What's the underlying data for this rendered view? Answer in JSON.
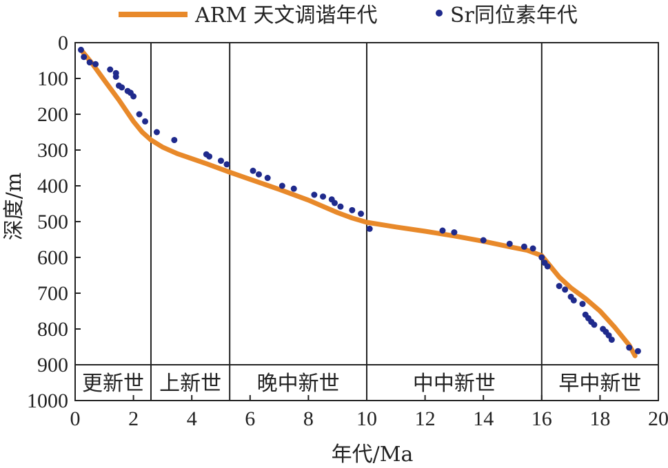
{
  "chart_data": {
    "type": "line",
    "title": "",
    "xlabel": "年代/Ma",
    "ylabel": "深度/m",
    "xlim": [
      0,
      20
    ],
    "ylim": [
      0,
      1000
    ],
    "y_inverted": true,
    "xticks": [
      0,
      2,
      4,
      6,
      8,
      10,
      12,
      14,
      16,
      18,
      20
    ],
    "yticks": [
      0,
      100,
      200,
      300,
      400,
      500,
      600,
      700,
      800,
      900,
      1000
    ],
    "grid": false,
    "legend_position": "top",
    "colors": {
      "arm": "#e8892a",
      "sr": "#1f2a8c",
      "axis": "#222222"
    },
    "series": [
      {
        "name": "ARM 天文调谐年代",
        "kind": "line",
        "x": [
          0.2,
          0.6,
          1.0,
          1.5,
          2.0,
          2.3,
          2.6,
          3.0,
          3.5,
          4.5,
          5.3,
          6.0,
          7.0,
          8.0,
          9.0,
          9.5,
          10.0,
          11.0,
          12.0,
          13.0,
          14.0,
          15.0,
          15.5,
          16.0,
          16.3,
          16.6,
          17.0,
          17.5,
          18.0,
          18.5,
          19.0,
          19.2
        ],
        "y": [
          20,
          60,
          105,
          160,
          220,
          250,
          272,
          292,
          310,
          338,
          362,
          382,
          410,
          440,
          475,
          490,
          502,
          515,
          527,
          540,
          555,
          572,
          580,
          595,
          625,
          655,
          685,
          715,
          750,
          795,
          845,
          875
        ]
      },
      {
        "name": "Sr同位素年代",
        "kind": "scatter",
        "x": [
          0.2,
          0.3,
          0.5,
          0.7,
          1.2,
          1.4,
          1.4,
          1.5,
          1.6,
          1.8,
          1.9,
          2.0,
          2.2,
          2.4,
          2.8,
          3.4,
          4.5,
          4.6,
          5.0,
          5.2,
          6.1,
          6.3,
          6.6,
          7.1,
          7.5,
          8.2,
          8.5,
          8.8,
          8.9,
          9.1,
          9.5,
          9.8,
          10.1,
          12.6,
          13.0,
          14.0,
          14.9,
          15.4,
          15.7,
          16.0,
          16.1,
          16.2,
          16.6,
          16.8,
          17.0,
          17.1,
          17.4,
          17.5,
          17.6,
          17.7,
          17.8,
          18.1,
          18.2,
          18.3,
          18.4,
          19.0,
          19.3
        ],
        "y": [
          20,
          40,
          55,
          60,
          75,
          85,
          95,
          120,
          125,
          135,
          140,
          150,
          200,
          220,
          250,
          272,
          312,
          318,
          330,
          340,
          358,
          368,
          378,
          400,
          408,
          425,
          430,
          438,
          448,
          458,
          468,
          478,
          520,
          525,
          530,
          552,
          562,
          570,
          575,
          600,
          615,
          625,
          680,
          690,
          710,
          720,
          730,
          760,
          770,
          780,
          788,
          800,
          808,
          818,
          830,
          852,
          862
        ]
      }
    ],
    "epochs": [
      {
        "label": "更新世",
        "from": 0,
        "to": 2.6
      },
      {
        "label": "上新世",
        "from": 2.6,
        "to": 5.3
      },
      {
        "label": "晚中新世",
        "from": 5.3,
        "to": 10.0
      },
      {
        "label": "中中新世",
        "from": 10.0,
        "to": 16.0
      },
      {
        "label": "早中新世",
        "from": 16.0,
        "to": 20.0
      }
    ],
    "epoch_band_depth": [
      900,
      1000
    ]
  }
}
